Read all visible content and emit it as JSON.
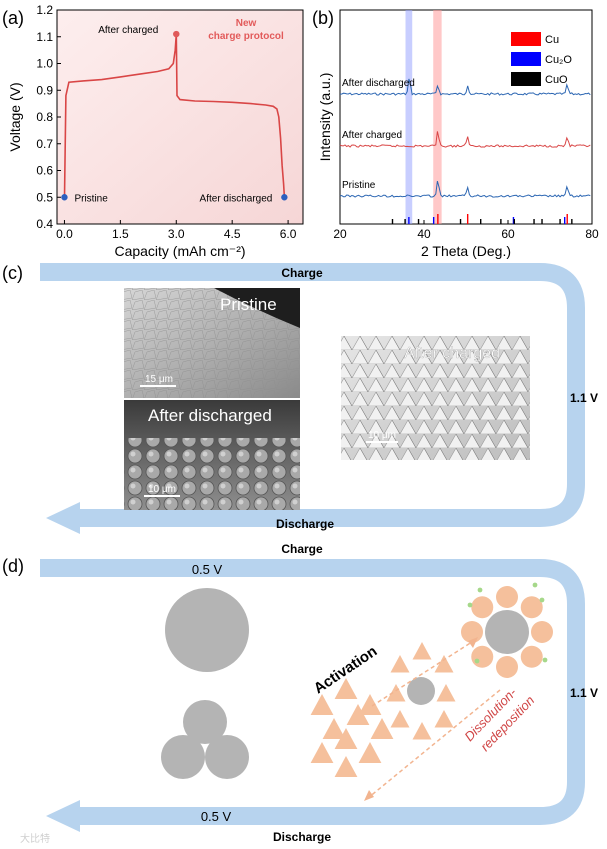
{
  "panels": {
    "a": {
      "label": "(a)"
    },
    "b": {
      "label": "(b)"
    },
    "c": {
      "label": "(c)"
    },
    "d": {
      "label": "(d)"
    }
  },
  "colors": {
    "accent_red": "#d94646",
    "accent_blue": "#2b5fbf",
    "arrow_blue": "#b7d3ee",
    "particle_gray": "#b4b4b4",
    "particle_orange": "#f5c09c"
  },
  "chart_data": [
    {
      "type": "line",
      "panel": "a",
      "xlabel": "Capacity (mAh cm⁻²)",
      "ylabel": "Voltage (V)",
      "xlim": [
        -0.2,
        6.4
      ],
      "ylim": [
        0.4,
        1.2
      ],
      "xticks": [
        "0.0",
        "1.5",
        "3.0",
        "4.5",
        "6.0"
      ],
      "xtick_values": [
        0,
        1.5,
        3.0,
        4.5,
        6.0
      ],
      "yticks": [
        "0.4",
        "0.5",
        "0.6",
        "0.7",
        "0.8",
        "0.9",
        "1.0",
        "1.1",
        "1.2"
      ],
      "ytick_values": [
        0.4,
        0.5,
        0.6,
        0.7,
        0.8,
        0.9,
        1.0,
        1.1,
        1.2
      ],
      "annotation": {
        "line1": "New",
        "line2": "charge protocol"
      },
      "series": [
        {
          "x": [
            0.0,
            0.04,
            0.12,
            0.5,
            1.0,
            1.5,
            2.0,
            2.5,
            2.8,
            2.92,
            2.97,
            3.0,
            3.02,
            3.1,
            3.5,
            4.0,
            4.5,
            5.0,
            5.4,
            5.6,
            5.7,
            5.75,
            5.8,
            5.84,
            5.88,
            5.9
          ],
          "y": [
            0.5,
            0.88,
            0.93,
            0.935,
            0.94,
            0.95,
            0.96,
            0.97,
            0.98,
            1.0,
            1.05,
            1.11,
            0.88,
            0.865,
            0.86,
            0.858,
            0.855,
            0.85,
            0.845,
            0.84,
            0.83,
            0.8,
            0.72,
            0.62,
            0.55,
            0.5
          ]
        }
      ],
      "points": [
        {
          "label": "Pristine",
          "x": 0.0,
          "y": 0.5,
          "color": "#2b5fbf"
        },
        {
          "label": "After charged",
          "x": 3.0,
          "y": 1.11,
          "color": "#e05a5a"
        },
        {
          "label": "After discharged",
          "x": 5.9,
          "y": 0.5,
          "color": "#2b5fbf"
        }
      ]
    },
    {
      "type": "line",
      "panel": "b",
      "xlabel": "2 Theta (Deg.)",
      "ylabel": "Intensity (a.u.)",
      "xlim": [
        20,
        80
      ],
      "xticks": [
        "20",
        "40",
        "60",
        "80"
      ],
      "xtick_values": [
        20,
        40,
        60,
        80
      ],
      "legend": [
        "Cu",
        "Cu₂O",
        "CuO"
      ],
      "legend_colors": [
        "#ff0000",
        "#0000ff",
        "#000000"
      ],
      "legend_position": "top-right",
      "highlight_bands": [
        {
          "from": 35.6,
          "to": 37.2,
          "color": "#9aa6ff"
        },
        {
          "from": 42.2,
          "to": 44.2,
          "color": "#ff9a9a"
        }
      ],
      "series": [
        {
          "name": "After discharged",
          "color": "#2d67b3",
          "peaks": [
            36.5,
            43.3,
            50.4,
            74.1
          ]
        },
        {
          "name": "After charged",
          "color": "#d94646",
          "peaks": [
            43.3,
            50.4,
            74.1
          ]
        },
        {
          "name": "Pristine",
          "color": "#2d67b3",
          "peaks": [
            43.3,
            50.4,
            74.1
          ]
        }
      ],
      "reference_ticks": {
        "Cu": [
          43.3,
          50.4,
          74.1
        ],
        "Cu2O": [
          36.4,
          42.3,
          61.3,
          73.5
        ],
        "CuO": [
          32.5,
          35.5,
          38.7,
          48.7,
          53.5,
          58.3,
          61.5,
          66.2,
          68.1,
          72.4,
          75.2
        ]
      }
    }
  ],
  "panel_c": {
    "top_arrow_label": "Charge",
    "bottom_arrow_label": "Discharge",
    "voltage_label": "1.1 V",
    "images": [
      {
        "title": "Pristine",
        "scale": "15 μm"
      },
      {
        "title": "After discharged",
        "scale": "10 μm"
      },
      {
        "title": "After charged",
        "scale": "10 μm"
      }
    ]
  },
  "panel_d": {
    "top_label": "Charge",
    "top_voltage": "0.5 V",
    "right_voltage": "1.1 V",
    "bottom_voltage": "0.5 V",
    "bottom_label": "Discharge",
    "activation": "Activation",
    "dissolution_line1": "Dissolution-",
    "dissolution_line2": "redeposition"
  },
  "watermark": "大比特"
}
